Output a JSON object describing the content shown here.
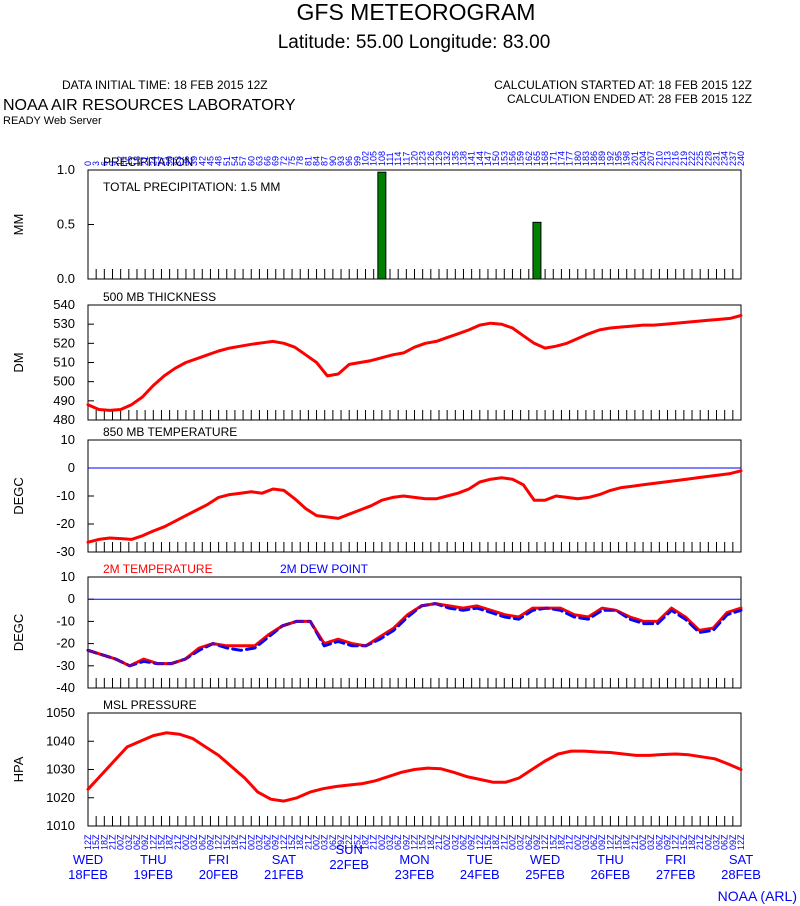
{
  "header": {
    "title": "GFS METEOROGRAM",
    "subtitle": "Latitude: 55.00 Longitude:  83.00",
    "init_time": "DATA INITIAL TIME: 18 FEB 2015 12Z",
    "calc_started": "CALCULATION STARTED AT: 18 FEB 2015 12Z",
    "calc_ended": "CALCULATION ENDED AT: 28 FEB 2015 12Z",
    "org": "NOAA AIR RESOURCES LABORATORY",
    "server": "READY Web Server",
    "credit": "NOAA (ARL)"
  },
  "forecast_hours": [
    0,
    3,
    6,
    9,
    12,
    15,
    18,
    21,
    24,
    27,
    30,
    33,
    36,
    39,
    42,
    45,
    48,
    51,
    54,
    57,
    60,
    63,
    66,
    69,
    72,
    75,
    78,
    81,
    84,
    87,
    90,
    93,
    96,
    99,
    102,
    105,
    108,
    111,
    114,
    117,
    120,
    123,
    126,
    129,
    132,
    135,
    138,
    141,
    144,
    147,
    150,
    153,
    156,
    159,
    162,
    165,
    168,
    171,
    174,
    177,
    180,
    183,
    186,
    189,
    192,
    195,
    198,
    201,
    204,
    207,
    210,
    213,
    216,
    219,
    222,
    225,
    228,
    231,
    234,
    237,
    240
  ],
  "utc_hours": [
    "12",
    "15",
    "18",
    "21",
    "00",
    "03",
    "06",
    "09",
    "12",
    "15",
    "18",
    "21",
    "00",
    "03",
    "06",
    "09",
    "12",
    "15",
    "18",
    "21",
    "00",
    "03",
    "06",
    "09",
    "12",
    "15",
    "18",
    "21",
    "00",
    "03",
    "06",
    "09",
    "12",
    "15",
    "18",
    "21",
    "00",
    "03",
    "06",
    "09",
    "12",
    "15",
    "18",
    "21",
    "00",
    "03",
    "06",
    "09",
    "12",
    "15",
    "18",
    "21",
    "00",
    "03",
    "06",
    "09",
    "12",
    "15",
    "18",
    "21",
    "00",
    "03",
    "06",
    "09",
    "12",
    "15",
    "18",
    "21",
    "00",
    "03",
    "06",
    "09",
    "12",
    "15",
    "18",
    "21",
    "00",
    "03",
    "06",
    "09",
    "12"
  ],
  "days": [
    {
      "name": "WED",
      "date": "18FEB"
    },
    {
      "name": "THU",
      "date": "19FEB"
    },
    {
      "name": "FRI",
      "date": "20FEB"
    },
    {
      "name": "SAT",
      "date": "21FEB"
    },
    {
      "name": "SUN",
      "date": "22FEB"
    },
    {
      "name": "MON",
      "date": "23FEB"
    },
    {
      "name": "TUE",
      "date": "24FEB"
    },
    {
      "name": "WED",
      "date": "25FEB"
    },
    {
      "name": "THU",
      "date": "26FEB"
    },
    {
      "name": "FRI",
      "date": "27FEB"
    },
    {
      "name": "SAT",
      "date": "28FEB"
    }
  ],
  "colors": {
    "accent": "#0000ff",
    "series": "#ff0000",
    "dew": "#0000ff",
    "bar": "#008000"
  },
  "chart_data": [
    {
      "type": "bar",
      "title": "PRECIPITATION",
      "annotation": "TOTAL PRECIPITATION:   1.5 MM",
      "ylabel": "MM",
      "ylim": [
        0,
        1
      ],
      "yticks": [
        0,
        0.5,
        1
      ],
      "ytick_labels": [
        "0.0",
        "0.5",
        "1.0"
      ],
      "bars": [
        {
          "x": 108,
          "value": 0.98
        },
        {
          "x": 165,
          "value": 0.52
        }
      ]
    },
    {
      "type": "line",
      "title": "500 MB  THICKNESS",
      "ylabel": "DM",
      "ylim": [
        480,
        540
      ],
      "yticks": [
        480,
        490,
        500,
        510,
        520,
        530,
        540
      ],
      "series": [
        {
          "values": [
            488,
            485.5,
            485,
            485.5,
            488,
            492,
            498,
            503,
            507,
            510,
            512,
            514,
            516,
            517.5,
            518.5,
            519.5,
            520.3,
            521,
            520,
            518,
            514,
            510,
            503,
            504,
            509,
            510,
            511,
            512.5,
            514,
            515,
            518,
            520,
            521,
            523,
            525,
            527,
            529.5,
            530.5,
            530,
            528,
            524,
            520,
            517.5,
            518.5,
            520,
            522.5,
            525,
            527,
            528,
            528.5,
            529,
            529.5,
            529.5,
            530,
            530.5,
            531,
            531.5,
            532,
            532.5,
            533,
            534.5
          ]
        }
      ]
    },
    {
      "type": "line",
      "title": "850 MB  TEMPERATURE",
      "ylabel": "DEGC",
      "ylim": [
        -30,
        10
      ],
      "yticks": [
        -30,
        -20,
        -10,
        0,
        10
      ],
      "zero_line": true,
      "series": [
        {
          "values": [
            -26.5,
            -25.5,
            -25,
            -25.2,
            -25.5,
            -24.2,
            -22.5,
            -21,
            -19,
            -17,
            -15,
            -13,
            -10.5,
            -9.5,
            -9,
            -8.5,
            -9,
            -7.5,
            -8,
            -11,
            -14.5,
            -17,
            -17.5,
            -18,
            -16.5,
            -15,
            -13.5,
            -11.5,
            -10.5,
            -10,
            -10.5,
            -11,
            -11,
            -10,
            -9,
            -7.5,
            -5,
            -4,
            -3.5,
            -4,
            -6,
            -11.5,
            -11.5,
            -10,
            -10.5,
            -11,
            -10.5,
            -9.5,
            -8,
            -7,
            -6.5,
            -6,
            -5.5,
            -5,
            -4.5,
            -4,
            -3.5,
            -3,
            -2.5,
            -2,
            -1
          ]
        }
      ]
    },
    {
      "type": "line",
      "legend_placement": "top-left",
      "ylabel": "DEGC",
      "ylim": [
        -40,
        10
      ],
      "yticks": [
        -40,
        -30,
        -20,
        -10,
        0,
        10
      ],
      "zero_line": true,
      "series": [
        {
          "name": "2M TEMPERATURE",
          "style": "solid",
          "values": [
            -23,
            -25,
            -27,
            -30,
            -27,
            -29,
            -29,
            -27,
            -22,
            -20,
            -21,
            -21,
            -21,
            -16,
            -12,
            -10,
            -10,
            -20,
            -18,
            -20,
            -21,
            -17,
            -13,
            -7,
            -3,
            -2,
            -3,
            -4,
            -3,
            -5,
            -7,
            -8,
            -4,
            -4,
            -4,
            -7,
            -8,
            -4,
            -5,
            -8,
            -10,
            -10,
            -4,
            -8,
            -14,
            -13,
            -6,
            -4
          ]
        },
        {
          "name": "2M   DEW POINT",
          "style": "dashed",
          "values": [
            -23,
            -25,
            -27,
            -30,
            -28,
            -29,
            -29,
            -27,
            -23,
            -20,
            -22,
            -23,
            -22,
            -17,
            -12,
            -10,
            -10,
            -21,
            -19,
            -21,
            -21,
            -18,
            -14,
            -8,
            -3,
            -2,
            -4,
            -5,
            -4,
            -6,
            -8,
            -9,
            -5,
            -4,
            -5,
            -8,
            -9,
            -5,
            -5,
            -9,
            -11,
            -11,
            -5,
            -9,
            -15,
            -14,
            -7,
            -5
          ]
        }
      ]
    },
    {
      "type": "line",
      "title": "MSL PRESSURE",
      "ylabel": "HPA",
      "ylim": [
        1010,
        1050
      ],
      "yticks": [
        1010,
        1020,
        1030,
        1040,
        1050
      ],
      "series": [
        {
          "values": [
            1023,
            1028,
            1033,
            1038,
            1040,
            1042,
            1043,
            1042.5,
            1041,
            1038,
            1035,
            1031,
            1027,
            1022,
            1019.5,
            1018.8,
            1020,
            1022,
            1023.2,
            1024,
            1024.5,
            1025,
            1026,
            1027.5,
            1029,
            1030,
            1030.5,
            1030.3,
            1029,
            1027.5,
            1026.5,
            1025.5,
            1025.5,
            1027,
            1030,
            1033,
            1035.5,
            1036.5,
            1036.5,
            1036.2,
            1036,
            1035.5,
            1035,
            1035,
            1035.3,
            1035.5,
            1035.2,
            1034.5,
            1033.8,
            1032,
            1030
          ]
        }
      ]
    }
  ]
}
